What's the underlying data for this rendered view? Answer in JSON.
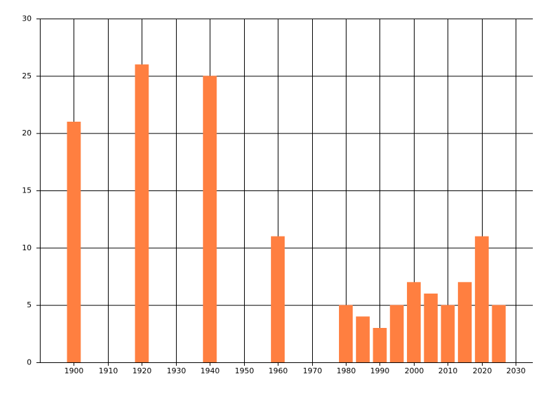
{
  "chart_data": {
    "type": "bar",
    "x": [
      1900,
      1920,
      1940,
      1960,
      1980,
      1985,
      1990,
      1995,
      2000,
      2005,
      2010,
      2015,
      2020,
      2025
    ],
    "values": [
      21,
      26,
      25,
      11,
      5,
      4,
      3,
      5,
      7,
      6,
      5,
      7,
      11,
      5
    ],
    "color": "#ff7f40",
    "xlim": [
      1890,
      2035
    ],
    "xticks": [
      1900,
      1910,
      1920,
      1930,
      1940,
      1950,
      1960,
      1970,
      1980,
      1990,
      2000,
      2010,
      2020,
      2030
    ],
    "ylim": [
      0,
      30
    ],
    "yticks": [
      0,
      5,
      10,
      15,
      20,
      25,
      30
    ],
    "grid": true
  }
}
